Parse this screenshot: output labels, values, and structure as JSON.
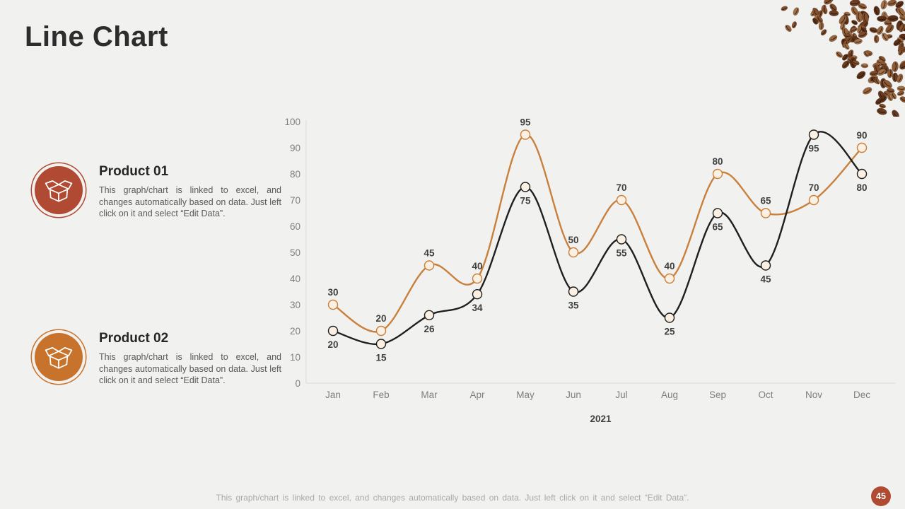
{
  "title": "Line Chart",
  "products": [
    {
      "name": "Product 01",
      "description": "This graph/chart is linked to excel, and changes automatically based on data. Just left click on it and select “Edit Data”.",
      "color": "#B04A33"
    },
    {
      "name": "Product 02",
      "description": "This graph/chart is linked to excel, and changes automatically based on data. Just left click on it and select “Edit Data”.",
      "color": "#C8732B"
    }
  ],
  "chart_data": {
    "type": "line",
    "categories": [
      "Jan",
      "Feb",
      "Mar",
      "Apr",
      "May",
      "Jun",
      "Jul",
      "Aug",
      "Sep",
      "Oct",
      "Nov",
      "Dec"
    ],
    "series": [
      {
        "name": "Product 02",
        "color": "#C8803C",
        "values": [
          30,
          20,
          45,
          40,
          95,
          50,
          70,
          40,
          80,
          65,
          70,
          90
        ]
      },
      {
        "name": "Product 01",
        "color": "#1f1f1f",
        "values": [
          20,
          15,
          26,
          34,
          75,
          35,
          55,
          25,
          65,
          45,
          95,
          80
        ]
      }
    ],
    "title": "",
    "xlabel": "2021",
    "ylabel": "",
    "ylim": [
      0,
      100
    ],
    "yticks": [
      0,
      10,
      20,
      30,
      40,
      50,
      60,
      70,
      80,
      90,
      100
    ],
    "grid": "off",
    "legend_position": "none",
    "marker_fill": "#FBF0E2",
    "label_color": "#404040",
    "axis_text_color": "#7f7f7f",
    "axis_line_color": "#d9d9d9"
  },
  "footer": "This graph/chart is linked to excel,  and changes automatically based on data. Just left click on it and select “Edit Data”.",
  "page_badge": {
    "number": "45",
    "color": "#B04A33"
  }
}
